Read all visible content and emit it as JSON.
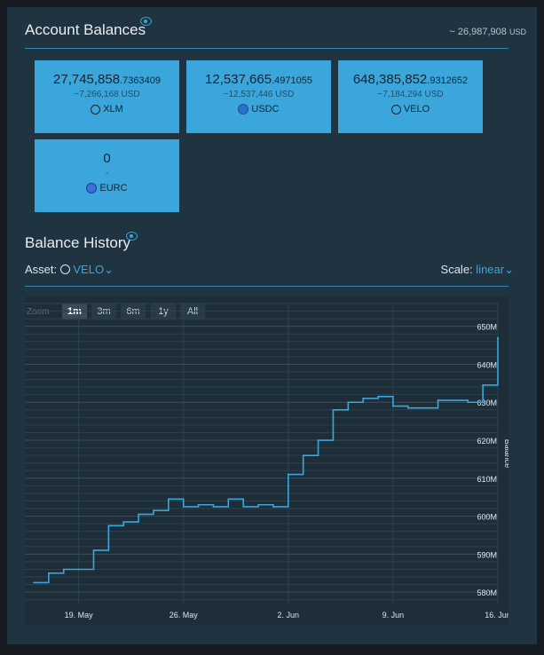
{
  "balances": {
    "title": "Account Balances",
    "total": "~ 26,987,908",
    "total_unit": "USD",
    "cards": [
      {
        "amount": "27,745,858",
        "decimals": ".7363409",
        "usd": "~7,266,168 USD",
        "asset": "XLM",
        "icon": "xlm-icon"
      },
      {
        "amount": "12,537,665",
        "decimals": ".4971055",
        "usd": "~12,537,446 USD",
        "asset": "USDC",
        "icon": "usdc-icon"
      },
      {
        "amount": "648,385,852",
        "decimals": ".9312652",
        "usd": "~7,184,294 USD",
        "asset": "VELO",
        "icon": "velo-icon"
      },
      {
        "amount": "0",
        "decimals": "",
        "usd": "-",
        "asset": "EURC",
        "icon": "eurc-icon"
      }
    ]
  },
  "history": {
    "title": "Balance History",
    "asset_label": "Asset:",
    "asset_value": "VELO",
    "scale_label": "Scale:",
    "scale_value": "linear"
  },
  "chart_data": {
    "type": "line",
    "step": true,
    "zoom_label": "Zoom",
    "zoom_options": [
      "1m",
      "3m",
      "6m",
      "1y",
      "All"
    ],
    "zoom_selected": "1m",
    "ylabel": "Balance",
    "ylim": [
      577,
      656
    ],
    "y_ticks": [
      580,
      590,
      600,
      610,
      620,
      630,
      640,
      650
    ],
    "y_tick_labels": [
      "580M",
      "590M",
      "600M",
      "610M",
      "620M",
      "630M",
      "640M",
      "650M"
    ],
    "x_range": [
      0,
      31
    ],
    "x_tick_days": [
      3,
      10,
      17,
      24,
      31
    ],
    "x_tick_labels": [
      "19. May",
      "26. May",
      "2. Jun",
      "9. Jun",
      "16. Jun"
    ],
    "grid": true,
    "series": [
      {
        "x": [
          0,
          1,
          2,
          3,
          4,
          5,
          6,
          7,
          8,
          9,
          10,
          11,
          12,
          13,
          14,
          15,
          16,
          17,
          18,
          19,
          20,
          21,
          22,
          23,
          24,
          25,
          26,
          27,
          28,
          29,
          30,
          31
        ],
        "y": [
          582.5,
          585,
          586,
          586,
          591,
          597.5,
          598.5,
          600.5,
          601.5,
          604.5,
          602.5,
          603,
          602.5,
          604.5,
          602.5,
          603,
          602.5,
          611,
          616,
          620,
          628,
          630,
          631,
          631.5,
          629,
          628.5,
          628.5,
          630.5,
          630.5,
          630,
          634.5,
          647
        ]
      }
    ]
  }
}
